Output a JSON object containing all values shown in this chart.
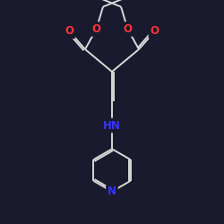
{
  "bg_color": "#1a1a2e",
  "bond_color": "#d8d8d8",
  "atom_colors": {
    "O": "#ff3333",
    "N": "#3333ff",
    "C": "#d8d8d8"
  },
  "bond_width": 1.4,
  "font_size_atoms": 8.5
}
